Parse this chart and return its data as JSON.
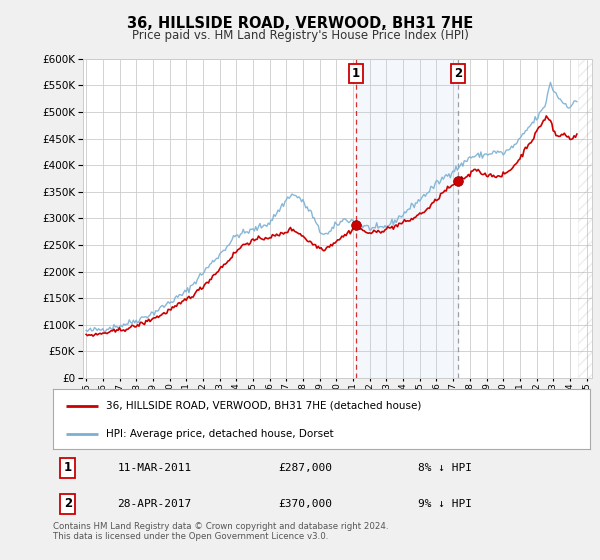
{
  "title": "36, HILLSIDE ROAD, VERWOOD, BH31 7HE",
  "subtitle": "Price paid vs. HM Land Registry's House Price Index (HPI)",
  "ylim": [
    0,
    600000
  ],
  "yticks": [
    0,
    50000,
    100000,
    150000,
    200000,
    250000,
    300000,
    350000,
    400000,
    450000,
    500000,
    550000,
    600000
  ],
  "xlim_start": 1995.0,
  "xlim_end": 2025.3,
  "background_color": "#f0f0f0",
  "plot_bg_color": "#ffffff",
  "grid_color": "#cccccc",
  "red_line_color": "#cc0000",
  "blue_line_color": "#7ab0d4",
  "vline1_x": 2011.18,
  "vline2_x": 2017.32,
  "marker1_date": 2011.18,
  "marker1_value": 287000,
  "marker2_date": 2017.32,
  "marker2_value": 370000,
  "legend_label_red": "36, HILLSIDE ROAD, VERWOOD, BH31 7HE (detached house)",
  "legend_label_blue": "HPI: Average price, detached house, Dorset",
  "ann1_date": "11-MAR-2011",
  "ann1_price": "£287,000",
  "ann1_hpi": "8% ↓ HPI",
  "ann2_date": "28-APR-2017",
  "ann2_price": "£370,000",
  "ann2_hpi": "9% ↓ HPI",
  "footer": "Contains HM Land Registry data © Crown copyright and database right 2024.\nThis data is licensed under the Open Government Licence v3.0."
}
